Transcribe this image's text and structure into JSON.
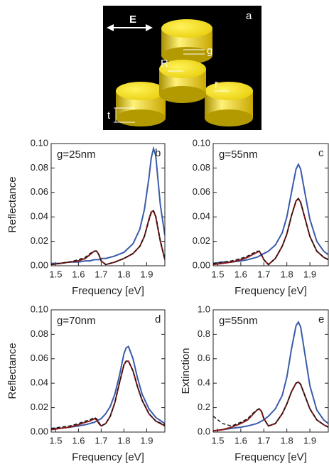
{
  "schematic": {
    "panel": "a",
    "field": "E",
    "gap": "g",
    "big_radius": "R",
    "small_radius": "r",
    "thickness": "t"
  },
  "chart_data": [
    {
      "type": "line",
      "panel": "b",
      "annotation": "g=25nm",
      "xlabel": "Frequency [eV]",
      "ylabel": "Reflectance",
      "xlim": [
        1.48,
        1.98
      ],
      "xticks": [
        1.5,
        1.6,
        1.7,
        1.8,
        1.9
      ],
      "ylim": [
        0,
        0.1
      ],
      "yticks": [
        {
          "value": 0,
          "label": "0.00"
        },
        {
          "value": 0.02,
          "label": "0.02"
        },
        {
          "value": 0.04,
          "label": "0.04"
        },
        {
          "value": 0.06,
          "label": "0.06"
        },
        {
          "value": 0.08,
          "label": "0.08"
        },
        {
          "value": 0.1,
          "label": "0.10"
        }
      ],
      "x": [
        1.48,
        1.52,
        1.56,
        1.6,
        1.63,
        1.65,
        1.67,
        1.68,
        1.69,
        1.7,
        1.72,
        1.76,
        1.8,
        1.84,
        1.87,
        1.89,
        1.91,
        1.92,
        1.93,
        1.94,
        1.95,
        1.96,
        1.98
      ],
      "series": [
        {
          "color": "#3a5bab",
          "dash": false,
          "values": [
            0.002,
            0.002,
            0.003,
            0.003,
            0.004,
            0.004,
            0.005,
            0.005,
            0.005,
            0.006,
            0.006,
            0.008,
            0.011,
            0.018,
            0.03,
            0.046,
            0.072,
            0.088,
            0.096,
            0.09,
            0.07,
            0.05,
            0.025
          ]
        },
        {
          "color": "#8b1a1a",
          "dash": false,
          "values": [
            0.001,
            0.002,
            0.003,
            0.004,
            0.006,
            0.009,
            0.012,
            0.012,
            0.009,
            0.004,
            0.001,
            0.003,
            0.006,
            0.01,
            0.016,
            0.024,
            0.038,
            0.044,
            0.045,
            0.04,
            0.03,
            0.02,
            0.005
          ]
        },
        {
          "color": "#111111",
          "dash": true,
          "values": [
            0.001,
            0.002,
            0.003,
            0.005,
            0.007,
            0.01,
            0.012,
            0.012,
            0.009,
            0.004,
            0.001,
            0.003,
            0.006,
            0.01,
            0.016,
            0.024,
            0.037,
            0.043,
            0.045,
            0.041,
            0.031,
            0.021,
            0.006
          ]
        }
      ]
    },
    {
      "type": "line",
      "panel": "c",
      "annotation": "g=55nm",
      "xlabel": "Frequency [eV]",
      "xlim": [
        1.48,
        1.98
      ],
      "xticks": [
        1.5,
        1.6,
        1.7,
        1.8,
        1.9
      ],
      "ylim": [
        0,
        0.1
      ],
      "yticks": [
        {
          "value": 0,
          "label": "0.00"
        },
        {
          "value": 0.02,
          "label": "0.02"
        },
        {
          "value": 0.04,
          "label": "0.04"
        },
        {
          "value": 0.06,
          "label": "0.06"
        },
        {
          "value": 0.08,
          "label": "0.08"
        },
        {
          "value": 0.1,
          "label": "0.10"
        }
      ],
      "x": [
        1.48,
        1.52,
        1.56,
        1.6,
        1.63,
        1.65,
        1.67,
        1.68,
        1.69,
        1.7,
        1.72,
        1.75,
        1.78,
        1.8,
        1.82,
        1.84,
        1.85,
        1.86,
        1.88,
        1.9,
        1.93,
        1.96,
        1.98
      ],
      "series": [
        {
          "color": "#3a5bab",
          "dash": false,
          "values": [
            0.002,
            0.003,
            0.003,
            0.004,
            0.005,
            0.006,
            0.007,
            0.008,
            0.009,
            0.01,
            0.012,
            0.017,
            0.027,
            0.04,
            0.06,
            0.079,
            0.083,
            0.079,
            0.058,
            0.038,
            0.02,
            0.012,
            0.009
          ]
        },
        {
          "color": "#8b1a1a",
          "dash": false,
          "values": [
            0.001,
            0.002,
            0.003,
            0.005,
            0.007,
            0.009,
            0.011,
            0.012,
            0.009,
            0.005,
            0.001,
            0.006,
            0.016,
            0.026,
            0.041,
            0.053,
            0.055,
            0.052,
            0.038,
            0.024,
            0.012,
            0.007,
            0.005
          ]
        },
        {
          "color": "#111111",
          "dash": true,
          "values": [
            0.002,
            0.003,
            0.004,
            0.006,
            0.008,
            0.01,
            0.012,
            0.012,
            0.009,
            0.005,
            0.001,
            0.006,
            0.016,
            0.026,
            0.041,
            0.053,
            0.055,
            0.052,
            0.038,
            0.024,
            0.012,
            0.007,
            0.005
          ]
        }
      ]
    },
    {
      "type": "line",
      "panel": "d",
      "annotation": "g=70nm",
      "xlabel": "Frequency [eV]",
      "ylabel": "Reflectance",
      "xlim": [
        1.48,
        1.98
      ],
      "xticks": [
        1.5,
        1.6,
        1.7,
        1.8,
        1.9
      ],
      "ylim": [
        0,
        0.1
      ],
      "yticks": [
        {
          "value": 0,
          "label": "0.00"
        },
        {
          "value": 0.02,
          "label": "0.02"
        },
        {
          "value": 0.04,
          "label": "0.04"
        },
        {
          "value": 0.06,
          "label": "0.06"
        },
        {
          "value": 0.08,
          "label": "0.08"
        },
        {
          "value": 0.1,
          "label": "0.10"
        }
      ],
      "x": [
        1.48,
        1.52,
        1.56,
        1.6,
        1.63,
        1.65,
        1.67,
        1.68,
        1.69,
        1.7,
        1.72,
        1.74,
        1.76,
        1.78,
        1.8,
        1.81,
        1.82,
        1.84,
        1.86,
        1.88,
        1.91,
        1.94,
        1.98
      ],
      "series": [
        {
          "color": "#3a5bab",
          "dash": false,
          "values": [
            0.003,
            0.003,
            0.004,
            0.005,
            0.006,
            0.007,
            0.008,
            0.009,
            0.01,
            0.011,
            0.015,
            0.021,
            0.031,
            0.046,
            0.064,
            0.069,
            0.07,
            0.06,
            0.044,
            0.031,
            0.019,
            0.012,
            0.007
          ]
        },
        {
          "color": "#8b1a1a",
          "dash": false,
          "values": [
            0.002,
            0.003,
            0.004,
            0.006,
            0.008,
            0.009,
            0.011,
            0.01,
            0.007,
            0.005,
            0.007,
            0.013,
            0.024,
            0.04,
            0.055,
            0.058,
            0.058,
            0.05,
            0.037,
            0.026,
            0.015,
            0.009,
            0.005
          ]
        },
        {
          "color": "#111111",
          "dash": true,
          "values": [
            0.003,
            0.004,
            0.005,
            0.007,
            0.009,
            0.01,
            0.012,
            0.011,
            0.008,
            0.005,
            0.007,
            0.013,
            0.024,
            0.04,
            0.055,
            0.058,
            0.058,
            0.05,
            0.037,
            0.026,
            0.015,
            0.009,
            0.006
          ]
        }
      ]
    },
    {
      "type": "line",
      "panel": "e",
      "annotation": "g=55nm",
      "xlabel": "Frequency [eV]",
      "ylabel": "Extinction",
      "xlim": [
        1.48,
        1.98
      ],
      "xticks": [
        1.5,
        1.6,
        1.7,
        1.8,
        1.9
      ],
      "ylim": [
        0,
        1
      ],
      "yticks": [
        {
          "value": 0,
          "label": "0.0"
        },
        {
          "value": 0.2,
          "label": "0.2"
        },
        {
          "value": 0.4,
          "label": "0.4"
        },
        {
          "value": 0.6,
          "label": "0.6"
        },
        {
          "value": 0.8,
          "label": "0.8"
        },
        {
          "value": 1,
          "label": "1.0"
        }
      ],
      "x": [
        1.48,
        1.52,
        1.56,
        1.6,
        1.63,
        1.65,
        1.67,
        1.68,
        1.69,
        1.7,
        1.72,
        1.75,
        1.78,
        1.8,
        1.82,
        1.84,
        1.85,
        1.86,
        1.88,
        1.9,
        1.93,
        1.96,
        1.98
      ],
      "series": [
        {
          "color": "#3a5bab",
          "dash": false,
          "values": [
            0.01,
            0.02,
            0.03,
            0.04,
            0.05,
            0.06,
            0.07,
            0.08,
            0.09,
            0.1,
            0.13,
            0.19,
            0.3,
            0.45,
            0.68,
            0.87,
            0.9,
            0.86,
            0.62,
            0.38,
            0.18,
            0.1,
            0.07
          ]
        },
        {
          "color": "#8b1a1a",
          "dash": false,
          "values": [
            0.01,
            0.02,
            0.04,
            0.07,
            0.1,
            0.14,
            0.18,
            0.19,
            0.17,
            0.11,
            0.05,
            0.07,
            0.15,
            0.23,
            0.33,
            0.4,
            0.41,
            0.39,
            0.29,
            0.19,
            0.1,
            0.06,
            0.04
          ]
        },
        {
          "color": "#111111",
          "dash": true,
          "values": [
            0.13,
            0.07,
            0.05,
            0.08,
            0.11,
            0.15,
            0.18,
            0.19,
            0.17,
            0.11,
            0.05,
            0.07,
            0.15,
            0.23,
            0.33,
            0.4,
            0.41,
            0.39,
            0.29,
            0.19,
            0.1,
            0.06,
            0.04
          ]
        }
      ]
    }
  ]
}
